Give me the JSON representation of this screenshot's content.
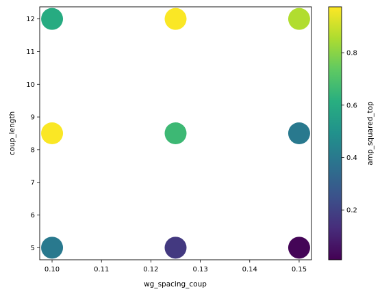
{
  "chart_data": {
    "type": "scatter",
    "xlabel": "wg_spacing_coup",
    "ylabel": "coup_length",
    "xlim": [
      0.0975,
      0.1525
    ],
    "ylim": [
      4.63,
      12.37
    ],
    "xticks": [
      0.1,
      0.11,
      0.12,
      0.13,
      0.14,
      0.15
    ],
    "xtick_labels": [
      "0.10",
      "0.11",
      "0.12",
      "0.13",
      "0.14",
      "0.15"
    ],
    "yticks": [
      5,
      6,
      7,
      8,
      9,
      10,
      11,
      12
    ],
    "ytick_labels": [
      "5",
      "6",
      "7",
      "8",
      "9",
      "10",
      "11",
      "12"
    ],
    "grid": false,
    "points": [
      {
        "x": 0.1,
        "y": 12.0,
        "value": 0.6
      },
      {
        "x": 0.125,
        "y": 12.0,
        "value": 0.97
      },
      {
        "x": 0.15,
        "y": 12.0,
        "value": 0.86
      },
      {
        "x": 0.1,
        "y": 8.5,
        "value": 0.97
      },
      {
        "x": 0.125,
        "y": 8.5,
        "value": 0.66
      },
      {
        "x": 0.15,
        "y": 8.5,
        "value": 0.4
      },
      {
        "x": 0.1,
        "y": 5.0,
        "value": 0.4
      },
      {
        "x": 0.125,
        "y": 5.0,
        "value": 0.17
      },
      {
        "x": 0.15,
        "y": 5.0,
        "value": 0.02
      }
    ],
    "colorbar": {
      "label": "amp_squared_top",
      "colormap": "viridis",
      "range": [
        0.01,
        0.975
      ],
      "ticks": [
        0.2,
        0.4,
        0.6,
        0.8
      ],
      "tick_labels": [
        "0.2",
        "0.4",
        "0.6",
        "0.8"
      ]
    }
  }
}
